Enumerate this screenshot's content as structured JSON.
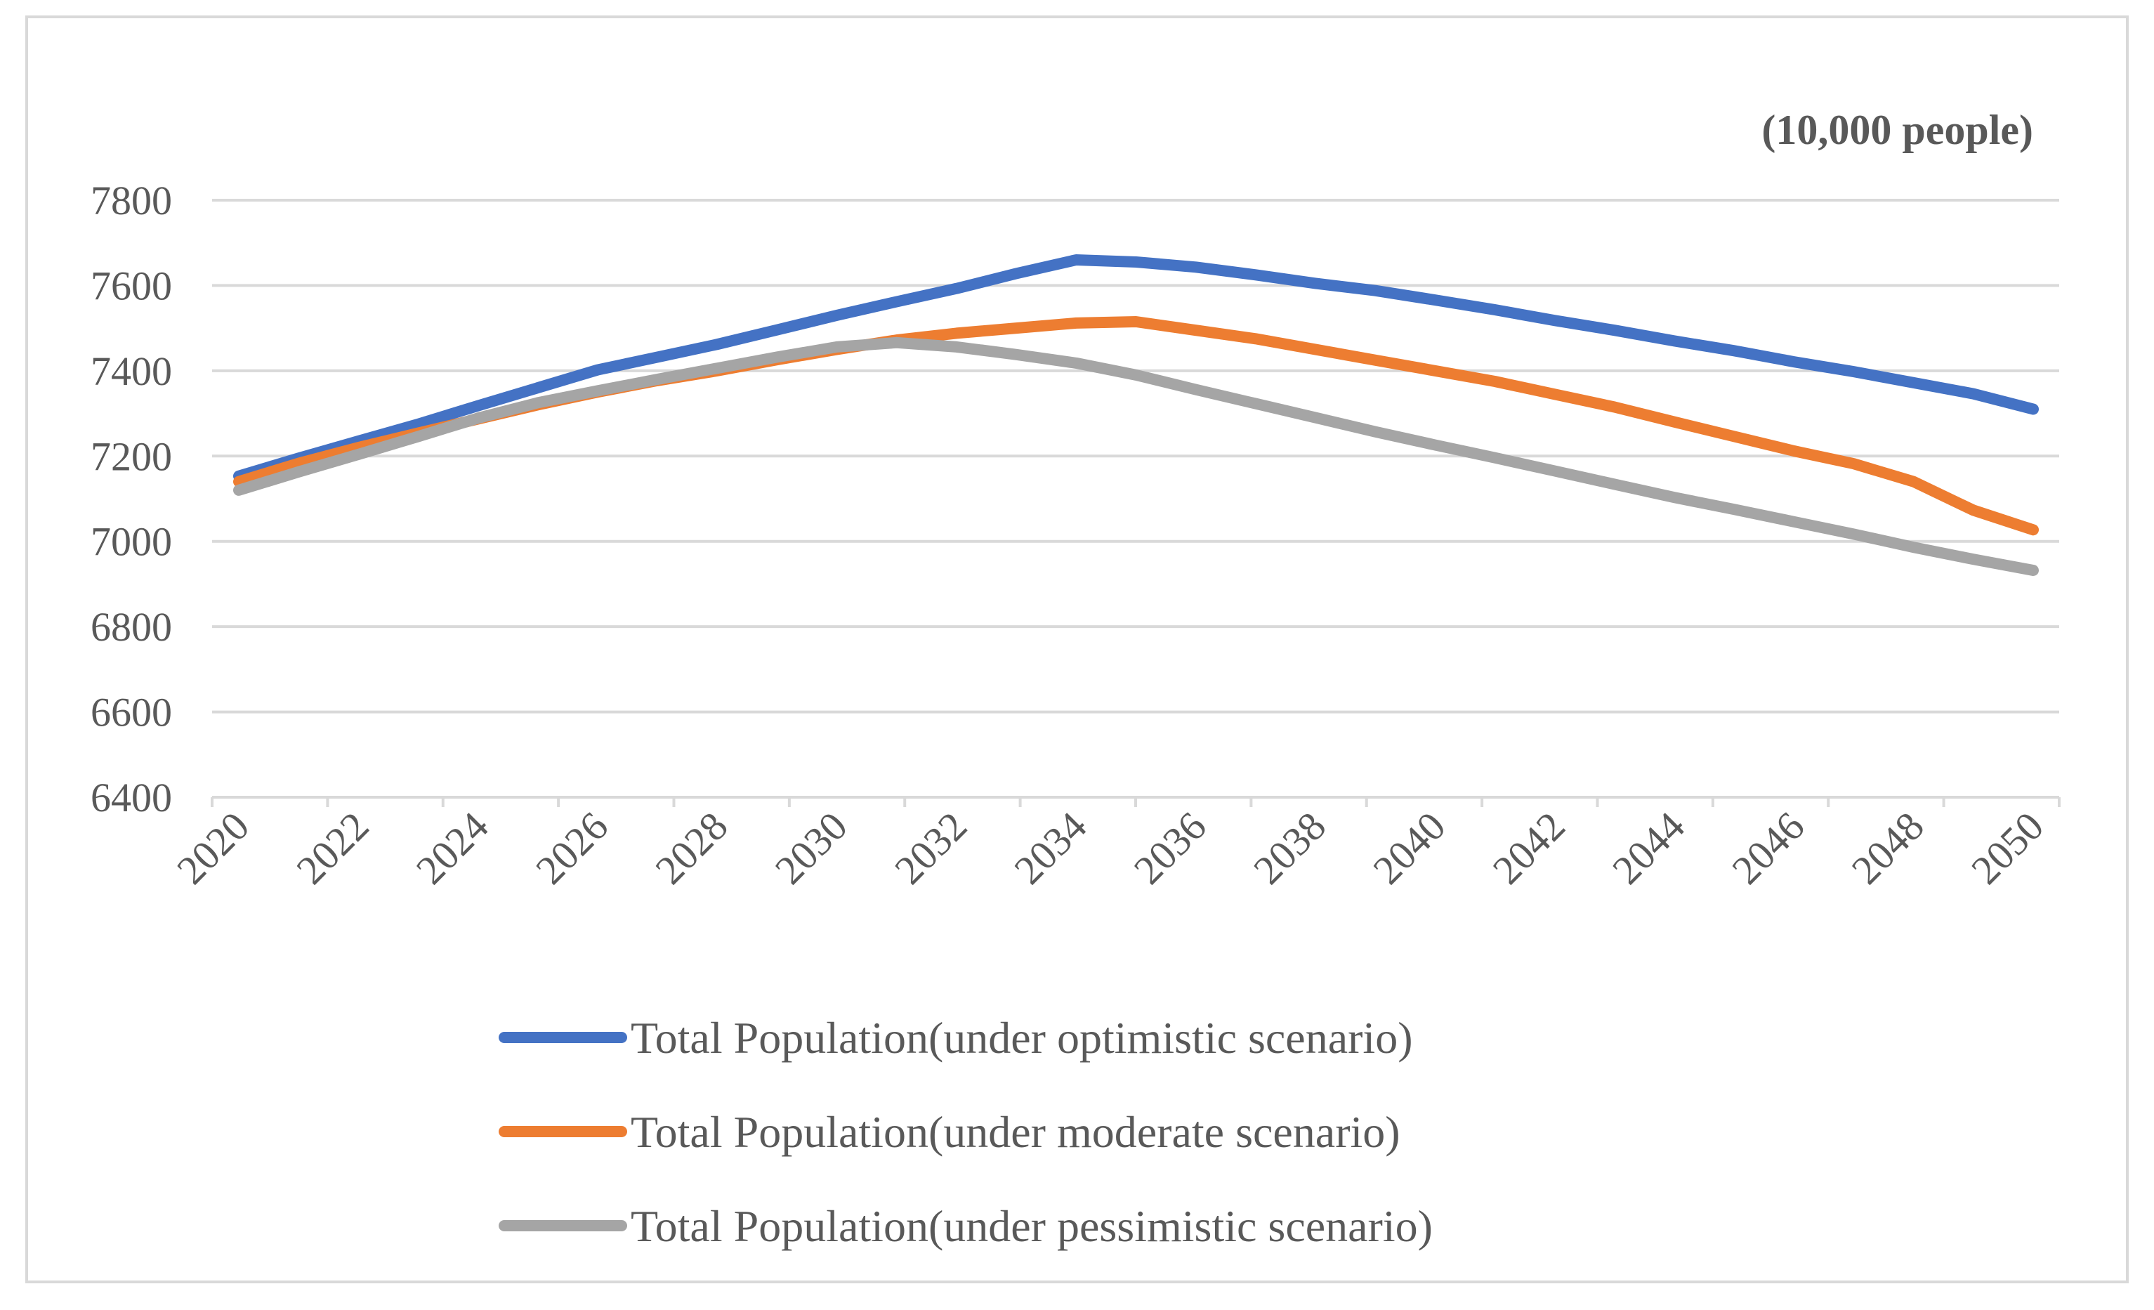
{
  "chart_data": {
    "type": "line",
    "unit_label": "(10,000 people)",
    "x": [
      2020,
      2021,
      2022,
      2023,
      2024,
      2025,
      2026,
      2027,
      2028,
      2029,
      2030,
      2031,
      2032,
      2033,
      2034,
      2035,
      2036,
      2037,
      2038,
      2039,
      2040,
      2041,
      2042,
      2043,
      2044,
      2045,
      2046,
      2047,
      2048,
      2049,
      2050
    ],
    "x_tick_labels": [
      "2020",
      "2022",
      "2024",
      "2026",
      "2028",
      "2030",
      "2032",
      "2034",
      "2036",
      "2038",
      "2040",
      "2042",
      "2044",
      "2046",
      "2048",
      "2050"
    ],
    "ylim": [
      6400,
      7800
    ],
    "y_ticks": [
      6400,
      6600,
      6800,
      7000,
      7200,
      7400,
      7600,
      7800
    ],
    "grid": true,
    "legend_position": "bottom",
    "series": [
      {
        "name": "Total Population(under optimistic scenario)",
        "color": "#4472c4",
        "values": [
          7153,
          7195,
          7235,
          7275,
          7318,
          7360,
          7402,
          7432,
          7462,
          7496,
          7530,
          7562,
          7593,
          7628,
          7660,
          7655,
          7643,
          7625,
          7605,
          7588,
          7566,
          7543,
          7518,
          7495,
          7470,
          7447,
          7421,
          7398,
          7372,
          7346,
          7310
        ]
      },
      {
        "name": "Total Population(under moderate scenario)",
        "color": "#ed7d31",
        "values": [
          7140,
          7183,
          7220,
          7254,
          7287,
          7320,
          7350,
          7377,
          7400,
          7426,
          7450,
          7472,
          7488,
          7500,
          7512,
          7515,
          7495,
          7475,
          7450,
          7425,
          7400,
          7375,
          7345,
          7315,
          7280,
          7246,
          7212,
          7182,
          7140,
          7073,
          7027
        ]
      },
      {
        "name": "Total Population(under pessimistic scenario)",
        "color": "#a5a5a5",
        "values": [
          7120,
          7163,
          7204,
          7246,
          7289,
          7325,
          7353,
          7380,
          7406,
          7432,
          7456,
          7466,
          7456,
          7438,
          7418,
          7390,
          7356,
          7323,
          7290,
          7257,
          7226,
          7196,
          7165,
          7134,
          7103,
          7075,
          7046,
          7017,
          6986,
          6958,
          6932
        ]
      }
    ]
  }
}
